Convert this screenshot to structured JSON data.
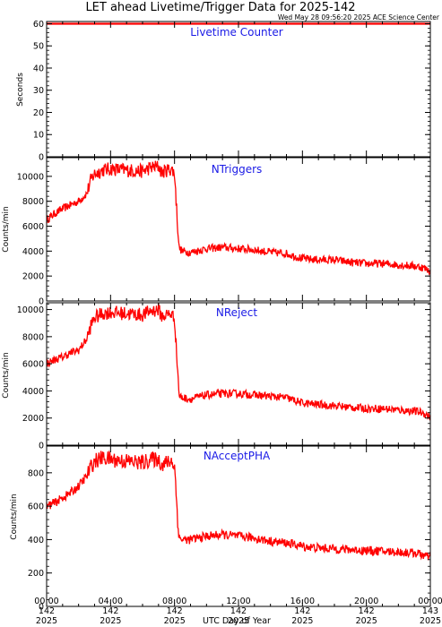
{
  "title": "LET ahead Livetime/Trigger Data for 2025-142",
  "timestamp": "Wed May 28 09:56:20 2025 ACE Science Center",
  "colors": {
    "trace": "#ff0000",
    "panel_label": "#1a1ae6",
    "axes": "#000000"
  },
  "chart_data": [
    {
      "type": "line",
      "title": "Livetime Counter",
      "ylabel": "Seconds",
      "ylim": [
        0,
        61
      ],
      "yticks": [
        0,
        10,
        20,
        30,
        40,
        50,
        60
      ],
      "series": [
        {
          "x": [
            0,
            24
          ],
          "y": [
            60,
            60
          ]
        }
      ]
    },
    {
      "type": "line",
      "title": "NTriggers",
      "ylabel": "Counts/min",
      "ylim": [
        0,
        11500
      ],
      "yticks": [
        0,
        2000,
        4000,
        6000,
        8000,
        10000
      ],
      "series": [
        {
          "x": [
            0,
            0.5,
            1.0,
            1.5,
            2.0,
            2.5,
            2.8,
            3.0,
            3.5,
            4.0,
            5.0,
            6.0,
            6.5,
            7.0,
            7.2,
            7.5,
            7.8,
            8.0,
            8.2,
            8.3,
            8.5,
            9.0,
            10,
            11,
            12,
            13,
            14,
            15,
            16,
            17,
            18,
            19,
            20,
            21,
            22,
            23,
            23.5,
            24
          ],
          "y": [
            6500,
            7000,
            7400,
            7700,
            8000,
            8600,
            9800,
            10200,
            10500,
            10600,
            10500,
            10400,
            10700,
            10800,
            10300,
            10500,
            10600,
            10200,
            6000,
            4200,
            4000,
            3900,
            4200,
            4300,
            4200,
            4100,
            3900,
            3800,
            3400,
            3300,
            3300,
            3100,
            3000,
            3000,
            2900,
            2800,
            2700,
            2400
          ]
        }
      ]
    },
    {
      "type": "line",
      "title": "NReject",
      "ylabel": "Counts/min",
      "ylim": [
        0,
        10500
      ],
      "yticks": [
        0,
        2000,
        4000,
        6000,
        8000,
        10000
      ],
      "series": [
        {
          "x": [
            0,
            0.5,
            1.0,
            1.5,
            2.0,
            2.5,
            2.8,
            3.0,
            3.5,
            4.0,
            5.0,
            6.0,
            6.5,
            7.0,
            7.2,
            7.5,
            7.8,
            8.0,
            8.2,
            8.3,
            8.5,
            9.0,
            10,
            11,
            12,
            13,
            14,
            15,
            16,
            17,
            18,
            19,
            20,
            21,
            22,
            23,
            23.5,
            24
          ],
          "y": [
            6000,
            6300,
            6500,
            6800,
            7000,
            7800,
            8900,
            9400,
            9700,
            9800,
            9700,
            9600,
            9900,
            10000,
            9500,
            9600,
            9700,
            9300,
            5500,
            3600,
            3500,
            3400,
            3700,
            3800,
            3800,
            3700,
            3600,
            3500,
            3100,
            3000,
            2900,
            2800,
            2700,
            2700,
            2600,
            2500,
            2400,
            2100
          ]
        }
      ]
    },
    {
      "type": "line",
      "title": "NAcceptPHA",
      "ylabel": "Counts/min",
      "ylim": [
        0,
        960
      ],
      "yticks": [
        0,
        200,
        400,
        600,
        800
      ],
      "series": [
        {
          "x": [
            0,
            0.5,
            1.0,
            1.5,
            2.0,
            2.5,
            2.8,
            3.0,
            3.5,
            4.0,
            5.0,
            6.0,
            6.5,
            7.0,
            7.2,
            7.5,
            7.8,
            8.0,
            8.2,
            8.3,
            8.5,
            9.0,
            10,
            11,
            12,
            13,
            14,
            15,
            16,
            17,
            18,
            19,
            20,
            21,
            22,
            23,
            23.5,
            24
          ],
          "y": [
            600,
            620,
            650,
            680,
            720,
            780,
            840,
            870,
            890,
            880,
            870,
            860,
            880,
            880,
            850,
            860,
            870,
            840,
            520,
            410,
            400,
            400,
            420,
            430,
            420,
            410,
            390,
            380,
            360,
            350,
            345,
            340,
            335,
            330,
            325,
            320,
            310,
            290
          ]
        }
      ]
    }
  ],
  "x_axis": {
    "xlim": [
      0,
      24
    ],
    "label": "UTC Day of Year",
    "ticks": [
      {
        "x": 0,
        "time": "00:00",
        "doy": "142",
        "year": "2025"
      },
      {
        "x": 4,
        "time": "04:00",
        "doy": "142",
        "year": "2025"
      },
      {
        "x": 8,
        "time": "08:00",
        "doy": "142",
        "year": "2025"
      },
      {
        "x": 12,
        "time": "12:00",
        "doy": "142",
        "year": "2025"
      },
      {
        "x": 16,
        "time": "16:00",
        "doy": "142",
        "year": "2025"
      },
      {
        "x": 20,
        "time": "20:00",
        "doy": "142",
        "year": "2025"
      },
      {
        "x": 24,
        "time": "00:00",
        "doy": "143",
        "year": "2025"
      }
    ]
  }
}
